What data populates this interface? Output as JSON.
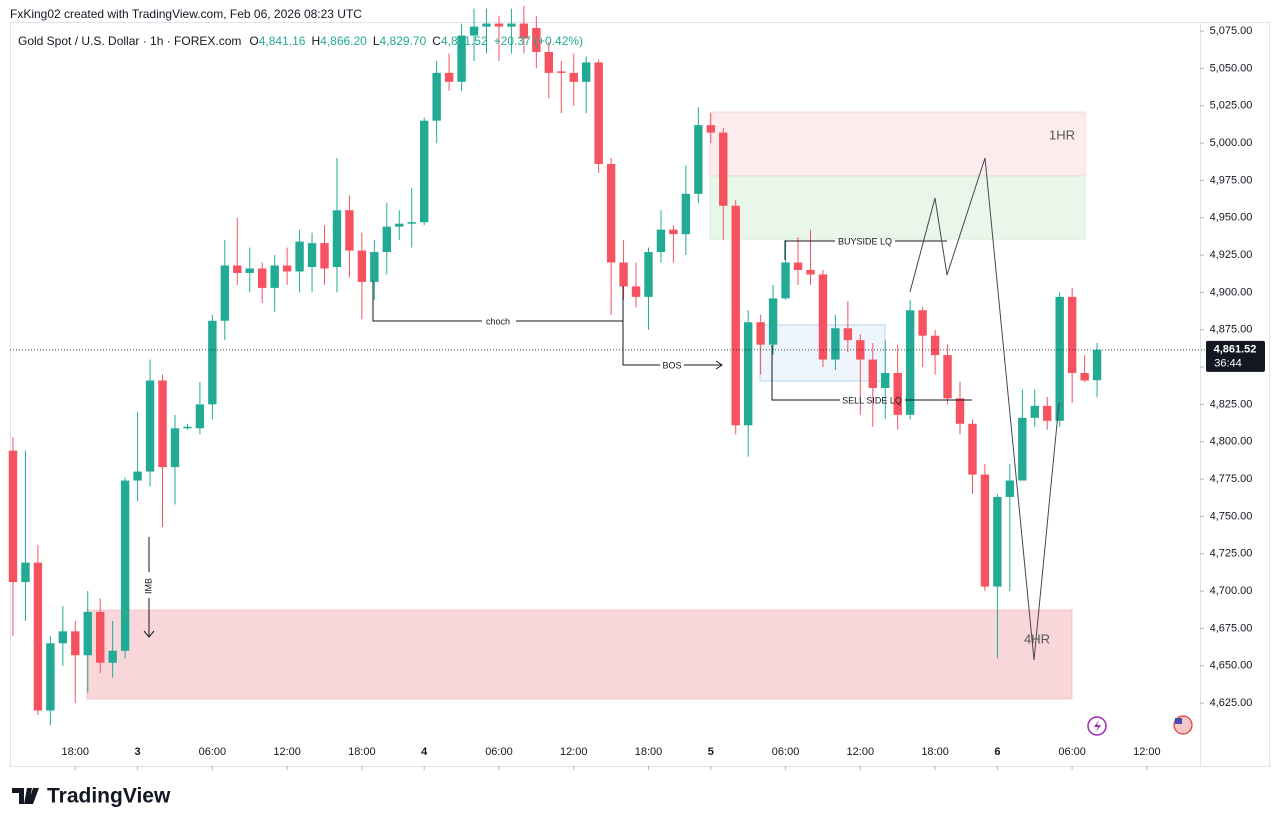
{
  "header": {
    "credit": "FxKing02 created with TradingView.com, Feb 06, 2026 08:23 UTC",
    "symbol": "Gold Spot / U.S. Dollar · 1h · FOREX.com",
    "ohlc": [
      {
        "key": "O",
        "value": "4,841.16"
      },
      {
        "key": "H",
        "value": "4,866.20"
      },
      {
        "key": "L",
        "value": "4,829.70"
      },
      {
        "key": "C",
        "value": "4,861.52"
      }
    ],
    "change": "+20.37 (+0.42%)"
  },
  "footer": {
    "brand": "TradingView"
  },
  "chart_data": {
    "type": "candlestick",
    "up_color": "#22ab94",
    "down_color": "#f7525f",
    "xlim": [
      -0.24,
      95.26
    ],
    "ylim": [
      4583.5,
      5095.8
    ],
    "xticks": [
      {
        "value": 5,
        "label": "18:00"
      },
      {
        "value": 10,
        "label": "3"
      },
      {
        "value": 16,
        "label": "06:00"
      },
      {
        "value": 22,
        "label": "12:00"
      },
      {
        "value": 28,
        "label": "18:00"
      },
      {
        "value": 33,
        "label": "4"
      },
      {
        "value": 39,
        "label": "06:00"
      },
      {
        "value": 45,
        "label": "12:00"
      },
      {
        "value": 51,
        "label": "18:00"
      },
      {
        "value": 56,
        "label": "5"
      },
      {
        "value": 62,
        "label": "06:00"
      },
      {
        "value": 68,
        "label": "12:00"
      },
      {
        "value": 74,
        "label": "18:00"
      },
      {
        "value": 79,
        "label": "6"
      },
      {
        "value": 85,
        "label": "06:00"
      },
      {
        "value": 91,
        "label": "12:00"
      }
    ],
    "yticks": [
      {
        "value": 5075,
        "label": "5,075.00"
      },
      {
        "value": 5050,
        "label": "5,050.00"
      },
      {
        "value": 5025,
        "label": "5,025.00"
      },
      {
        "value": 5000,
        "label": "5,000.00"
      },
      {
        "value": 4975,
        "label": "4,975.00"
      },
      {
        "value": 4950,
        "label": "4,950.00"
      },
      {
        "value": 4925,
        "label": "4,925.00"
      },
      {
        "value": 4900,
        "label": "4,900.00"
      },
      {
        "value": 4875,
        "label": "4,875.00"
      },
      {
        "value": 4850,
        "label": "4,850.00"
      },
      {
        "value": 4825,
        "label": "4,825.00"
      },
      {
        "value": 4800,
        "label": "4,800.00"
      },
      {
        "value": 4775,
        "label": "4,775.00"
      },
      {
        "value": 4750,
        "label": "4,750.00"
      },
      {
        "value": 4725,
        "label": "4,725.00"
      },
      {
        "value": 4700,
        "label": "4,700.00"
      },
      {
        "value": 4675,
        "label": "4,675.00"
      },
      {
        "value": 4650,
        "label": "4,650.00"
      },
      {
        "value": 4625,
        "label": "4,625.00"
      }
    ],
    "last_price": {
      "value": 4861.52,
      "label": "4,861.52",
      "countdown": "36:44"
    },
    "candles": {
      "open": [
        4794,
        4706,
        4719,
        4620,
        4665,
        4673,
        4657,
        4686,
        4652,
        4660,
        4774,
        4780,
        4841,
        4783,
        4809,
        4809,
        4825,
        4881,
        4918,
        4913,
        4916,
        4903,
        4918,
        4914,
        4917,
        4933,
        4917,
        4955,
        4928,
        4907,
        4927,
        4944,
        4946,
        4947,
        5015,
        5047,
        5041,
        5072,
        5078,
        5080,
        5078,
        5080,
        5077,
        5061,
        5048,
        5047,
        5041,
        5054,
        4986,
        4920,
        4904,
        4897,
        4927,
        4942,
        4939,
        4966,
        5012,
        5007,
        4958,
        4811,
        4880,
        4865,
        4896,
        4920,
        4915,
        4912,
        4855,
        4876,
        4868,
        4855,
        4836,
        4846,
        4818,
        4888,
        4871,
        4858,
        4829,
        4812,
        4778,
        4703,
        4763,
        4774,
        4816,
        4824,
        4814,
        4897,
        4846,
        4841.16
      ],
      "high": [
        4803,
        4794,
        4731,
        4670,
        4690,
        4680,
        4700,
        4695,
        4680,
        4776,
        4820,
        4855,
        4845,
        4818,
        4812,
        4840,
        4885,
        4935,
        4950,
        4930,
        4920,
        4925,
        4930,
        4942,
        4940,
        4945,
        4990,
        4965,
        4940,
        4935,
        4960,
        4955,
        4970,
        5017,
        5055,
        5060,
        5080,
        5090,
        5090,
        5085,
        5090,
        5092,
        5085,
        5068,
        5055,
        5060,
        5058,
        5056,
        4990,
        4935,
        4920,
        4930,
        4955,
        4945,
        4985,
        5024,
        5020,
        5010,
        4962,
        4888,
        4885,
        4905,
        4935,
        4937,
        4942,
        4915,
        4885,
        4894,
        4872,
        4866,
        4868,
        4865,
        4895,
        4890,
        4875,
        4865,
        4840,
        4815,
        4785,
        4765,
        4785,
        4835,
        4835,
        4830,
        4900,
        4903,
        4858,
        4866.2
      ],
      "low": [
        4670,
        4680,
        4617,
        4610,
        4650,
        4625,
        4632,
        4645,
        4642,
        4655,
        4760,
        4770,
        4743,
        4758,
        4808,
        4805,
        4815,
        4868,
        4905,
        4900,
        4893,
        4887,
        4905,
        4900,
        4900,
        4905,
        4900,
        4910,
        4882,
        4895,
        4912,
        4935,
        4930,
        4945,
        5000,
        5035,
        5035,
        5055,
        5060,
        5055,
        5060,
        5060,
        5050,
        5030,
        5020,
        5025,
        5020,
        4980,
        4885,
        4895,
        4890,
        4875,
        4920,
        4920,
        4925,
        4960,
        5000,
        4935,
        4805,
        4790,
        4845,
        4858,
        4895,
        4905,
        4905,
        4850,
        4848,
        4860,
        4818,
        4810,
        4815,
        4808,
        4815,
        4850,
        4845,
        4825,
        4805,
        4765,
        4700,
        4655,
        4700,
        4775,
        4810,
        4808,
        4810,
        4826,
        4840,
        4829.7
      ],
      "close": [
        4706,
        4719,
        4620,
        4665,
        4673,
        4657,
        4686,
        4652,
        4660,
        4774,
        4780,
        4841,
        4783,
        4809,
        4810,
        4825,
        4881,
        4918,
        4913,
        4916,
        4903,
        4918,
        4914,
        4934,
        4933,
        4916,
        4955,
        4928,
        4907,
        4927,
        4944,
        4946,
        4947,
        5015,
        5047,
        5041,
        5072,
        5078,
        5080,
        5078,
        5080,
        5070,
        5061,
        5047,
        5047,
        5041,
        5054,
        4986,
        4920,
        4904,
        4897,
        4927,
        4942,
        4939,
        4966,
        5012,
        5007,
        4958,
        4811,
        4880,
        4865,
        4896,
        4920,
        4915,
        4912,
        4855,
        4876,
        4868,
        4855,
        4836,
        4846,
        4818,
        4888,
        4871,
        4858,
        4829,
        4812,
        4778,
        4703,
        4763,
        4774,
        4816,
        4824,
        4814,
        4897,
        4846,
        4841,
        4861.52
      ]
    },
    "annotations": {
      "zone_upper": "1HR",
      "zone_lower": "4HR",
      "choch": "choch",
      "bos": "BOS",
      "buyside": "BUYSIDE LQ",
      "sellside": "SELL SIDE LQ",
      "imb": "IMB"
    }
  }
}
